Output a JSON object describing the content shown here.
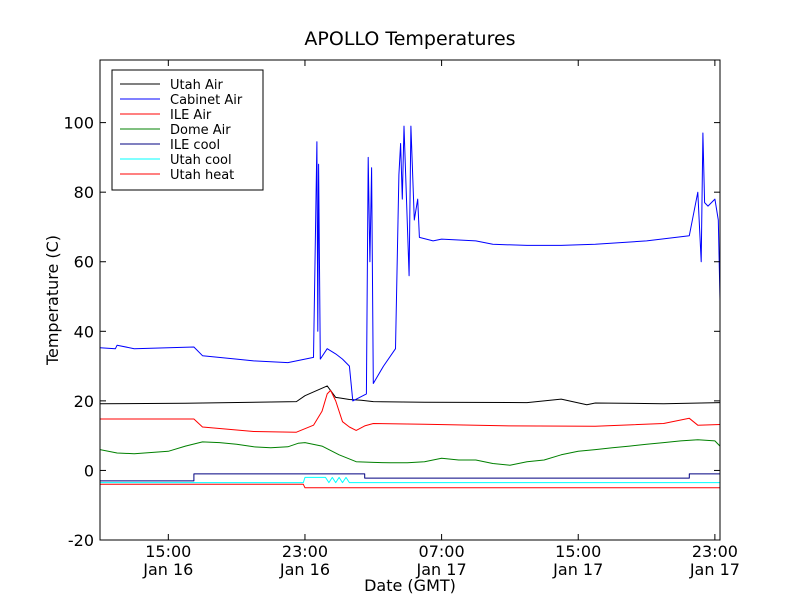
{
  "chart_data": {
    "type": "line",
    "title": "APOLLO Temperatures",
    "xlabel": "Date (GMT)",
    "ylabel": "Temperature (C)",
    "xlim": [
      11.0,
      47.3
    ],
    "ylim": [
      -20,
      118
    ],
    "yticks": [
      -20,
      0,
      20,
      40,
      60,
      80,
      100
    ],
    "ytick_labels": [
      "-20",
      "0",
      "20",
      "40",
      "60",
      "80",
      "100"
    ],
    "xticks": [
      {
        "x": 15,
        "line1": "15:00",
        "line2": "Jan 16"
      },
      {
        "x": 23,
        "line1": "23:00",
        "line2": "Jan 16"
      },
      {
        "x": 31,
        "line1": "07:00",
        "line2": "Jan 17"
      },
      {
        "x": 39,
        "line1": "15:00",
        "line2": "Jan 17"
      },
      {
        "x": 47,
        "line1": "23:00",
        "line2": "Jan 17"
      }
    ],
    "legend_location": "upper-left",
    "series": [
      {
        "name": "Utah Air",
        "color": "#000000",
        "x": [
          11,
          16,
          22.5,
          23,
          24.3,
          24.8,
          25.1,
          25.6,
          26.3,
          27,
          30,
          36,
          38,
          39.5,
          40,
          44,
          47.3
        ],
        "y": [
          19.2,
          19.3,
          19.8,
          21.5,
          24.3,
          21.0,
          20.8,
          20.4,
          20.2,
          19.8,
          19.6,
          19.5,
          20.5,
          18.9,
          19.4,
          19.2,
          19.5
        ]
      },
      {
        "name": "Cabinet Air",
        "color": "#0000ff",
        "x": [
          11,
          11.9,
          12,
          13,
          16.5,
          17,
          19,
          20,
          22,
          23.5,
          23.7,
          23.75,
          23.8,
          23.9,
          24.3,
          24.8,
          25.2,
          25.6,
          25.8,
          26.6,
          26.7,
          26.8,
          26.9,
          27,
          27.6,
          28.3,
          28.5,
          28.6,
          28.7,
          28.8,
          29.1,
          29.2,
          29.4,
          29.6,
          29.7,
          30.5,
          31,
          33,
          34,
          36,
          38,
          40,
          43,
          45.5,
          46,
          46.2,
          46.3,
          46.4,
          46.6,
          47,
          47.2,
          47.3
        ],
        "y": [
          35.3,
          35.0,
          36.0,
          35.0,
          35.5,
          33.0,
          32.0,
          31.5,
          31.0,
          32.5,
          94.5,
          40.0,
          88.0,
          32.0,
          35.0,
          33.5,
          32.0,
          30.0,
          20.0,
          22.0,
          90.0,
          60.0,
          87.0,
          25.0,
          30.0,
          35.0,
          85.0,
          94.0,
          78.0,
          99.0,
          56.0,
          99.0,
          72.0,
          78.0,
          67.0,
          66.0,
          66.5,
          66.0,
          65.0,
          64.7,
          64.7,
          65.0,
          66.0,
          67.5,
          80.0,
          60.0,
          97.0,
          77.0,
          76.0,
          78.0,
          72.0,
          49.0
        ]
      },
      {
        "name": "ILE Air",
        "color": "#ff0000",
        "x": [
          11,
          16.5,
          17,
          20,
          22.5,
          23.5,
          24,
          24.3,
          24.5,
          24.8,
          25.2,
          25.6,
          26,
          26.5,
          27,
          30,
          35,
          40,
          44,
          45.5,
          46,
          47.3
        ],
        "y": [
          14.8,
          14.8,
          12.5,
          11.2,
          11.0,
          13.0,
          17.0,
          22.0,
          23.0,
          20.0,
          14.0,
          12.5,
          11.5,
          12.8,
          13.5,
          13.3,
          12.8,
          12.7,
          13.5,
          15.0,
          13.0,
          13.2
        ]
      },
      {
        "name": "Dome Air",
        "color": "#008000",
        "x": [
          11,
          12,
          13,
          15,
          16,
          17,
          18,
          19,
          20,
          21,
          22,
          22.6,
          23,
          24,
          25,
          26,
          27,
          28,
          29,
          30,
          31,
          32,
          33,
          34,
          35,
          36,
          37,
          38,
          39,
          40,
          41,
          42,
          43,
          44,
          45,
          46,
          47,
          47.3
        ],
        "y": [
          6.0,
          5.0,
          4.8,
          5.5,
          7.0,
          8.2,
          8.0,
          7.5,
          6.8,
          6.5,
          6.8,
          7.8,
          8.0,
          7.0,
          4.5,
          2.5,
          2.3,
          2.2,
          2.2,
          2.5,
          3.5,
          3.0,
          3.0,
          2.0,
          1.5,
          2.5,
          3.0,
          4.5,
          5.5,
          6.0,
          6.5,
          7.0,
          7.5,
          8.0,
          8.5,
          8.8,
          8.5,
          7.0
        ]
      },
      {
        "name": "ILE cool",
        "color": "#000080",
        "x": [
          11,
          16.5,
          16.5,
          26.5,
          26.5,
          45.5,
          45.5,
          47.3
        ],
        "y": [
          -3.0,
          -3.0,
          -1.0,
          -1.0,
          -2.2,
          -2.2,
          -1.0,
          -1.0
        ]
      },
      {
        "name": "Utah cool",
        "color": "#00ffff",
        "x": [
          11,
          22.9,
          23.0,
          24.2,
          24.4,
          24.6,
          24.8,
          25.0,
          25.2,
          25.4,
          25.6,
          47.3
        ],
        "y": [
          -3.5,
          -3.5,
          -2.0,
          -2.0,
          -3.5,
          -2.0,
          -3.5,
          -2.0,
          -3.5,
          -2.0,
          -3.5,
          -3.5
        ]
      },
      {
        "name": "Utah heat",
        "color": "#ff0000",
        "x": [
          11,
          22.9,
          23.0,
          47.3
        ],
        "y": [
          -4.0,
          -4.0,
          -5.0,
          -5.0
        ]
      }
    ]
  }
}
